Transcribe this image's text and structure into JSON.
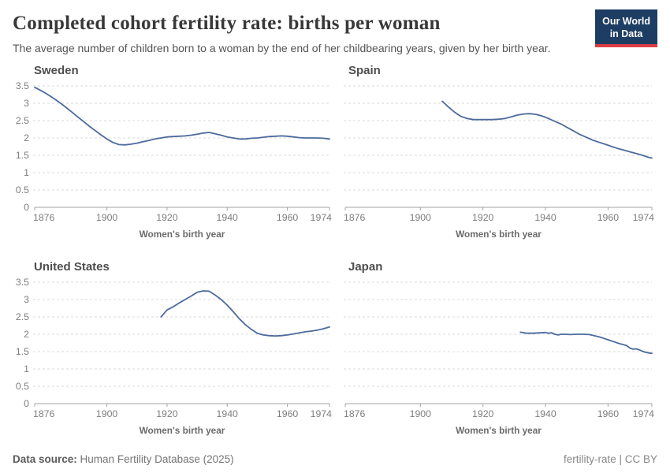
{
  "header": {
    "title": "Completed cohort fertility rate: births per woman",
    "subtitle": "The average number of children born to a woman by the end of her childbearing years, given by her birth year.",
    "logo": {
      "line1": "Our World",
      "line2": "in Data"
    }
  },
  "theme": {
    "line_color": "#4c6a9c",
    "grid_color": "#dadada",
    "axis_color": "#a3a3a3",
    "logo_bg": "#1d3d63",
    "logo_accent": "#dc3e42"
  },
  "chart_data": [
    {
      "type": "line",
      "title": "Sweden",
      "xlabel": "Women's birth year",
      "xlim": [
        1876,
        1974
      ],
      "ylim": [
        0,
        3.5
      ],
      "xticks": [
        1876,
        1900,
        1920,
        1940,
        1960,
        1974
      ],
      "yticks": [
        0,
        0.5,
        1,
        1.5,
        2,
        2.5,
        3,
        3.5
      ],
      "grid": true,
      "show_y_axis_labels": true,
      "x": [
        1876,
        1878,
        1880,
        1882,
        1884,
        1886,
        1888,
        1890,
        1892,
        1894,
        1896,
        1898,
        1900,
        1902,
        1904,
        1906,
        1908,
        1910,
        1912,
        1914,
        1916,
        1918,
        1920,
        1922,
        1924,
        1926,
        1928,
        1930,
        1932,
        1934,
        1936,
        1938,
        1940,
        1942,
        1944,
        1946,
        1948,
        1950,
        1952,
        1954,
        1956,
        1958,
        1960,
        1962,
        1964,
        1966,
        1968,
        1970,
        1972,
        1974
      ],
      "values": [
        3.46,
        3.37,
        3.27,
        3.16,
        3.04,
        2.91,
        2.77,
        2.63,
        2.49,
        2.35,
        2.22,
        2.09,
        1.97,
        1.87,
        1.81,
        1.8,
        1.82,
        1.85,
        1.89,
        1.93,
        1.97,
        2.0,
        2.03,
        2.04,
        2.05,
        2.06,
        2.08,
        2.11,
        2.14,
        2.16,
        2.12,
        2.08,
        2.03,
        2.0,
        1.97,
        1.97,
        1.99,
        2.0,
        2.02,
        2.04,
        2.05,
        2.06,
        2.05,
        2.03,
        2.01,
        2.0,
        2.0,
        2.0,
        1.99,
        1.97
      ]
    },
    {
      "type": "line",
      "title": "Spain",
      "xlabel": "Women's birth year",
      "xlim": [
        1876,
        1974
      ],
      "ylim": [
        0,
        3.5
      ],
      "xticks": [
        1876,
        1900,
        1920,
        1940,
        1960,
        1974
      ],
      "yticks": [
        0,
        0.5,
        1,
        1.5,
        2,
        2.5,
        3,
        3.5
      ],
      "grid": true,
      "show_y_axis_labels": false,
      "x": [
        1907,
        1909,
        1911,
        1913,
        1915,
        1917,
        1919,
        1921,
        1923,
        1925,
        1927,
        1929,
        1931,
        1933,
        1935,
        1937,
        1939,
        1941,
        1943,
        1945,
        1947,
        1949,
        1951,
        1953,
        1955,
        1957,
        1959,
        1961,
        1963,
        1965,
        1967,
        1969,
        1971,
        1973,
        1974
      ],
      "values": [
        3.06,
        2.89,
        2.74,
        2.62,
        2.56,
        2.53,
        2.53,
        2.53,
        2.53,
        2.54,
        2.56,
        2.61,
        2.66,
        2.69,
        2.7,
        2.68,
        2.63,
        2.56,
        2.48,
        2.4,
        2.3,
        2.2,
        2.1,
        2.02,
        1.94,
        1.88,
        1.82,
        1.76,
        1.7,
        1.65,
        1.6,
        1.55,
        1.5,
        1.44,
        1.42
      ]
    },
    {
      "type": "line",
      "title": "United States",
      "xlabel": "Women's birth year",
      "xlim": [
        1876,
        1974
      ],
      "ylim": [
        0,
        3.5
      ],
      "xticks": [
        1876,
        1900,
        1920,
        1940,
        1960,
        1974
      ],
      "yticks": [
        0,
        0.5,
        1,
        1.5,
        2,
        2.5,
        3,
        3.5
      ],
      "grid": true,
      "show_y_axis_labels": true,
      "x": [
        1918,
        1920,
        1922,
        1924,
        1926,
        1928,
        1930,
        1932,
        1934,
        1936,
        1938,
        1940,
        1942,
        1944,
        1946,
        1948,
        1950,
        1952,
        1954,
        1956,
        1958,
        1960,
        1962,
        1964,
        1966,
        1968,
        1970,
        1972,
        1974
      ],
      "values": [
        2.5,
        2.7,
        2.79,
        2.9,
        3.0,
        3.1,
        3.21,
        3.25,
        3.24,
        3.13,
        3.0,
        2.84,
        2.65,
        2.45,
        2.28,
        2.14,
        2.03,
        1.98,
        1.96,
        1.95,
        1.96,
        1.98,
        2.01,
        2.04,
        2.07,
        2.09,
        2.12,
        2.16,
        2.21
      ]
    },
    {
      "type": "line",
      "title": "Japan",
      "xlabel": "Women's birth year",
      "xlim": [
        1876,
        1974
      ],
      "ylim": [
        0,
        3.5
      ],
      "xticks": [
        1876,
        1900,
        1920,
        1940,
        1960,
        1974
      ],
      "yticks": [
        0,
        0.5,
        1,
        1.5,
        2,
        2.5,
        3,
        3.5
      ],
      "grid": true,
      "show_y_axis_labels": false,
      "x": [
        1932,
        1934,
        1936,
        1938,
        1940,
        1941,
        1942,
        1943,
        1944,
        1945,
        1946,
        1948,
        1950,
        1952,
        1954,
        1955,
        1956,
        1957,
        1958,
        1959,
        1960,
        1961,
        1962,
        1963,
        1964,
        1965,
        1966,
        1967,
        1968,
        1969,
        1970,
        1971,
        1972,
        1973,
        1974
      ],
      "values": [
        2.06,
        2.03,
        2.03,
        2.04,
        2.05,
        2.03,
        2.04,
        2.0,
        1.98,
        2.0,
        2.0,
        1.99,
        2.0,
        2.0,
        1.99,
        1.97,
        1.95,
        1.93,
        1.9,
        1.87,
        1.84,
        1.81,
        1.78,
        1.75,
        1.72,
        1.7,
        1.67,
        1.6,
        1.57,
        1.58,
        1.55,
        1.51,
        1.48,
        1.46,
        1.45
      ]
    }
  ],
  "footer": {
    "source_label": "Data source:",
    "source_value": "Human Fertility Database (2025)",
    "attribution": "fertility-rate | CC BY"
  }
}
